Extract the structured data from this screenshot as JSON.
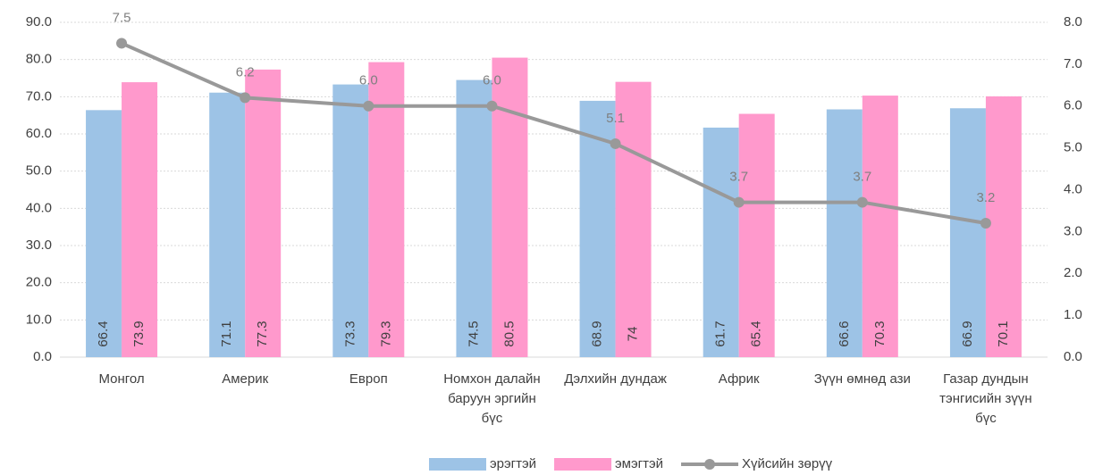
{
  "chart_data": {
    "type": "bar+line",
    "categories": [
      "Монгол",
      "Америк",
      "Европ",
      "Номхон далайн баруун эргийн бүс",
      "Дэлхийн дундаж",
      "Африк",
      "Зүүн өмнөд ази",
      "Газар дундын тэнгисийн зүүн бүс"
    ],
    "series": [
      {
        "name": "эрэгтэй",
        "type": "bar",
        "color": "#9dc3e6",
        "values": [
          66.4,
          71.1,
          73.3,
          74.5,
          68.9,
          61.7,
          66.6,
          66.9
        ]
      },
      {
        "name": "эмэгтэй",
        "type": "bar",
        "color": "#ff99cc",
        "values": [
          73.9,
          77.3,
          79.3,
          80.5,
          74,
          65.4,
          70.3,
          70.1
        ]
      },
      {
        "name": "Хүйсийн зөрүү",
        "type": "line",
        "axis": "y2",
        "color": "#999999",
        "values": [
          7.5,
          6.2,
          6.0,
          6.0,
          5.1,
          3.7,
          3.7,
          3.2
        ],
        "value_labels": [
          "7.5",
          "6.2",
          "6.0",
          "6.0",
          "5.1",
          "3.7",
          "3.7",
          "3.2"
        ]
      }
    ],
    "ylim": [
      0,
      90
    ],
    "yticks": [
      {
        "value": 0,
        "label": "0.0"
      },
      {
        "value": 10,
        "label": "10.0"
      },
      {
        "value": 20,
        "label": "20.0"
      },
      {
        "value": 30,
        "label": "30.0"
      },
      {
        "value": 40,
        "label": "40.0"
      },
      {
        "value": 50,
        "label": "50.0"
      },
      {
        "value": 60,
        "label": "60.0"
      },
      {
        "value": 70,
        "label": "70.0"
      },
      {
        "value": 80,
        "label": "80.0"
      },
      {
        "value": 90,
        "label": "90.0"
      }
    ],
    "y2lim": [
      0,
      8
    ],
    "y2ticks": [
      {
        "value": 0,
        "label": "0.0"
      },
      {
        "value": 1,
        "label": "1.0"
      },
      {
        "value": 2,
        "label": "2.0"
      },
      {
        "value": 3,
        "label": "3.0"
      },
      {
        "value": 4,
        "label": "4.0"
      },
      {
        "value": 5,
        "label": "5.0"
      },
      {
        "value": 6,
        "label": "6.0"
      },
      {
        "value": 7,
        "label": "7.0"
      },
      {
        "value": 8,
        "label": "8.0"
      }
    ],
    "grid": true,
    "legend": "bottom"
  }
}
